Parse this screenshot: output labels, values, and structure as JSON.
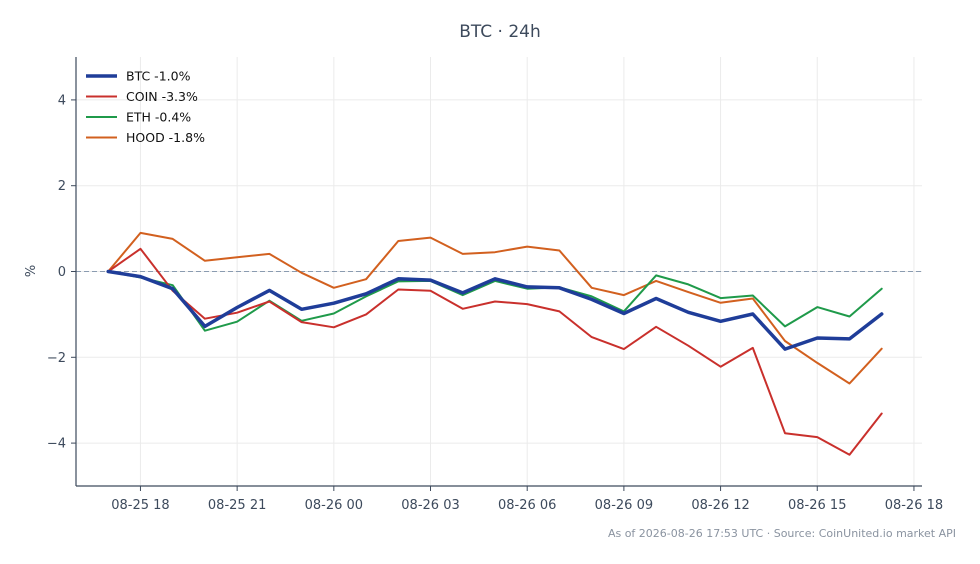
{
  "chart_data": {
    "type": "line",
    "title": "BTC · 24h",
    "xlabel": "",
    "ylabel": "%",
    "ylim": [
      -5,
      5
    ],
    "xlim": [
      "2026-08-25T16:00",
      "2026-08-26T18:15"
    ],
    "x_ticks": [
      "08-25 18",
      "08-25 21",
      "08-26 00",
      "08-26 03",
      "08-26 06",
      "08-26 09",
      "08-26 12",
      "08-26 15",
      "08-26 18"
    ],
    "y_ticks": [
      -4,
      -2,
      0,
      2,
      4
    ],
    "grid": true,
    "zero_line": "dashed",
    "legend_position": "top-left",
    "x": [
      "2026-08-25T17:00",
      "2026-08-25T18:00",
      "2026-08-25T19:00",
      "2026-08-25T20:00",
      "2026-08-25T21:00",
      "2026-08-25T22:00",
      "2026-08-25T23:00",
      "2026-08-26T00:00",
      "2026-08-26T01:00",
      "2026-08-26T02:00",
      "2026-08-26T03:00",
      "2026-08-26T04:00",
      "2026-08-26T05:00",
      "2026-08-26T06:00",
      "2026-08-26T07:00",
      "2026-08-26T08:00",
      "2026-08-26T09:00",
      "2026-08-26T10:00",
      "2026-08-26T11:00",
      "2026-08-26T12:00",
      "2026-08-26T13:00",
      "2026-08-26T14:00",
      "2026-08-26T15:00",
      "2026-08-26T16:00",
      "2026-08-26T17:00"
    ],
    "series": [
      {
        "name": "BTC -1.0%",
        "color": "#1f3d99",
        "width": 3.5,
        "values": [
          0,
          -0.12,
          -0.4,
          -1.28,
          -0.84,
          -0.44,
          -0.88,
          -0.74,
          -0.52,
          -0.17,
          -0.2,
          -0.5,
          -0.17,
          -0.36,
          -0.38,
          -0.65,
          -0.98,
          -0.63,
          -0.95,
          -1.16,
          -0.99,
          -1.81,
          -1.55,
          -1.57,
          -0.99
        ]
      },
      {
        "name": "COIN -3.3%",
        "color": "#c9302c",
        "width": 2,
        "values": [
          0,
          0.53,
          -0.45,
          -1.1,
          -0.96,
          -0.7,
          -1.18,
          -1.3,
          -1.0,
          -0.42,
          -0.45,
          -0.87,
          -0.7,
          -0.76,
          -0.93,
          -1.53,
          -1.81,
          -1.29,
          -1.73,
          -2.22,
          -1.78,
          -3.77,
          -3.86,
          -4.27,
          -3.31
        ]
      },
      {
        "name": "ETH -0.4%",
        "color": "#1f9a4a",
        "width": 2,
        "values": [
          0,
          -0.14,
          -0.32,
          -1.38,
          -1.17,
          -0.68,
          -1.15,
          -0.98,
          -0.58,
          -0.23,
          -0.22,
          -0.55,
          -0.22,
          -0.4,
          -0.37,
          -0.58,
          -0.93,
          -0.09,
          -0.3,
          -0.62,
          -0.56,
          -1.28,
          -0.83,
          -1.05,
          -0.4
        ]
      },
      {
        "name": "HOOD -1.8%",
        "color": "#d2601f",
        "width": 2,
        "values": [
          0,
          0.9,
          0.76,
          0.25,
          0.33,
          0.41,
          -0.03,
          -0.38,
          -0.18,
          0.71,
          0.79,
          0.41,
          0.45,
          0.58,
          0.49,
          -0.38,
          -0.55,
          -0.22,
          -0.48,
          -0.73,
          -0.63,
          -1.62,
          -2.13,
          -2.61,
          -1.8
        ]
      }
    ],
    "footer": "As of 2026-08-26 17:53 UTC · Source: CoinUnited.io market API"
  }
}
